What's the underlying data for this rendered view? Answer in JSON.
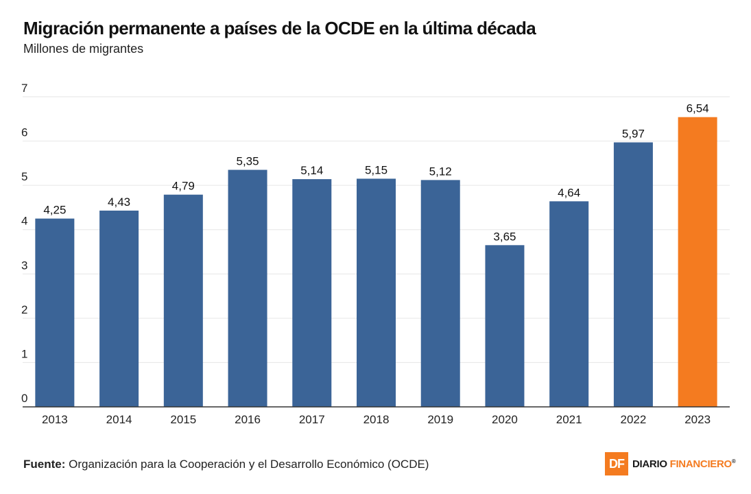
{
  "header": {
    "title": "Migración permanente a países de la OCDE en la última década",
    "subtitle": "Millones de migrantes"
  },
  "footer": {
    "source_label": "Fuente:",
    "source_text": "Organización para la Cooperación y el Desarrollo Económico (OCDE)",
    "brand_mark": "DF",
    "brand_word1": "DIARIO",
    "brand_word2": "FINANCIERO",
    "brand_reg": "®"
  },
  "chart_data": {
    "type": "bar",
    "categories": [
      "2013",
      "2014",
      "2015",
      "2016",
      "2017",
      "2018",
      "2019",
      "2020",
      "2021",
      "2022",
      "2023"
    ],
    "values": [
      4.25,
      4.43,
      4.79,
      5.35,
      5.14,
      5.15,
      5.12,
      3.65,
      4.64,
      5.97,
      6.54
    ],
    "value_labels": [
      "4,25",
      "4,43",
      "4,79",
      "5,35",
      "5,14",
      "5,15",
      "5,12",
      "3,65",
      "4,64",
      "5,97",
      "6,54"
    ],
    "title": "Migración permanente a países de la OCDE en la última década",
    "subtitle": "Millones de migrantes",
    "xlabel": "",
    "ylabel": "",
    "ylim": [
      0,
      7
    ],
    "yticks": [
      "0",
      "1",
      "2",
      "3",
      "4",
      "5",
      "6",
      "7"
    ],
    "grid": true,
    "colors": {
      "bar": "#3b6497",
      "highlight": "#f47b20",
      "highlight_category": "2023",
      "grid": "#e6e6e6",
      "axis": "#333333"
    }
  }
}
